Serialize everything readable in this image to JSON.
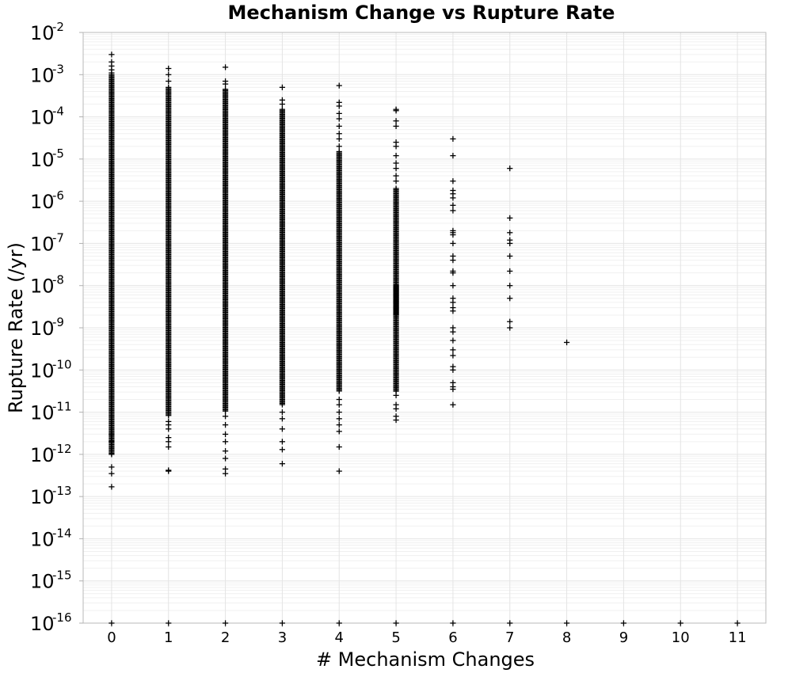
{
  "chart_data": {
    "type": "scatter",
    "title": "Mechanism Change vs Rupture Rate",
    "xlabel": "# Mechanism Changes",
    "ylabel": "Rupture Rate (/yr)",
    "x_scale": "linear",
    "y_scale": "log",
    "xlim": [
      -0.5,
      11.5
    ],
    "ylim": [
      1e-16,
      0.01
    ],
    "x_ticks": [
      "0",
      "1",
      "2",
      "3",
      "4",
      "5",
      "6",
      "7",
      "8",
      "9",
      "10",
      "11"
    ],
    "y_ticks": [
      {
        "base": "10",
        "exp": "-2"
      },
      {
        "base": "10",
        "exp": "-3"
      },
      {
        "base": "10",
        "exp": "-4"
      },
      {
        "base": "10",
        "exp": "-5"
      },
      {
        "base": "10",
        "exp": "-6"
      },
      {
        "base": "10",
        "exp": "-7"
      },
      {
        "base": "10",
        "exp": "-8"
      },
      {
        "base": "10",
        "exp": "-9"
      },
      {
        "base": "10",
        "exp": "-10"
      },
      {
        "base": "10",
        "exp": "-11"
      },
      {
        "base": "10",
        "exp": "-12"
      },
      {
        "base": "10",
        "exp": "-13"
      },
      {
        "base": "10",
        "exp": "-14"
      },
      {
        "base": "10",
        "exp": "-15"
      },
      {
        "base": "10",
        "exp": "-16"
      }
    ],
    "grid": true,
    "marker": "plus",
    "marker_color": "#000000",
    "series": [
      {
        "x": 0,
        "dense_ranges": [
          [
            1e-12,
            0.001
          ]
        ],
        "y": [
          0.003,
          0.002,
          0.0016,
          0.0013,
          0.0011,
          3e-12,
          2e-12,
          2e-12,
          1e-12,
          5e-13,
          3.5e-13,
          1.7e-13,
          1e-16
        ]
      },
      {
        "x": 1,
        "dense_ranges": [
          [
            8e-12,
            0.0005
          ]
        ],
        "y": [
          0.0014,
          0.001,
          0.0007,
          6e-12,
          5e-12,
          4e-12,
          2.5e-12,
          2e-12,
          1.5e-12,
          4.2e-13,
          4e-13,
          1e-16
        ]
      },
      {
        "x": 2,
        "dense_ranges": [
          [
            1e-11,
            0.00045
          ]
        ],
        "y": [
          0.0015,
          0.0007,
          0.0006,
          8e-12,
          5e-12,
          3e-12,
          2e-12,
          1.2e-12,
          8e-13,
          4.5e-13,
          3.5e-13,
          1e-16
        ]
      },
      {
        "x": 3,
        "dense_ranges": [
          [
            1.5e-11,
            0.00015
          ]
        ],
        "y": [
          0.0005,
          0.00025,
          0.0002,
          1e-11,
          7e-12,
          4e-12,
          2e-12,
          1.3e-12,
          6e-13,
          1e-16
        ]
      },
      {
        "x": 4,
        "dense_ranges": [
          [
            3e-11,
            1.5e-05
          ]
        ],
        "y": [
          0.00055,
          0.00022,
          0.00018,
          0.00012,
          9e-05,
          6e-05,
          4e-05,
          3e-05,
          2e-05,
          2e-11,
          1.5e-11,
          1e-11,
          7e-12,
          5e-12,
          3.5e-12,
          1.5e-12,
          4e-13,
          1e-16
        ]
      },
      {
        "x": 5,
        "dense_ranges": [
          [
            3e-11,
            2e-06
          ],
          [
            2e-09,
            1e-08
          ]
        ],
        "y": [
          0.00015,
          0.00014,
          8e-05,
          6e-05,
          2.5e-05,
          2e-05,
          1.2e-05,
          8e-06,
          6e-06,
          4e-06,
          3e-06,
          2.5e-11,
          1.5e-11,
          1.2e-11,
          8e-12,
          6.5e-12,
          1e-16
        ]
      },
      {
        "x": 6,
        "y": [
          3e-05,
          1.2e-05,
          3e-06,
          1.8e-06,
          1.5e-06,
          1.2e-06,
          8e-07,
          6e-07,
          2e-07,
          1.8e-07,
          1.6e-07,
          1e-07,
          5e-08,
          4e-08,
          2.2e-08,
          2e-08,
          1e-08,
          5e-09,
          4e-09,
          3e-09,
          2.5e-09,
          1e-09,
          8e-10,
          5e-10,
          3e-10,
          2.2e-10,
          1.2e-10,
          1e-10,
          5e-11,
          4e-11,
          3.5e-11,
          1.5e-11,
          1e-16
        ]
      },
      {
        "x": 7,
        "y": [
          6e-06,
          4e-07,
          1.8e-07,
          1.2e-07,
          1e-07,
          5e-08,
          2.2e-08,
          1e-08,
          5e-09,
          1.4e-09,
          1e-09,
          1e-16
        ]
      },
      {
        "x": 8,
        "y": [
          4.5e-10,
          1e-16
        ]
      },
      {
        "x": 9,
        "y": [
          1e-16
        ]
      },
      {
        "x": 10,
        "y": [
          1e-16
        ]
      },
      {
        "x": 11,
        "y": [
          1e-16
        ]
      }
    ]
  }
}
